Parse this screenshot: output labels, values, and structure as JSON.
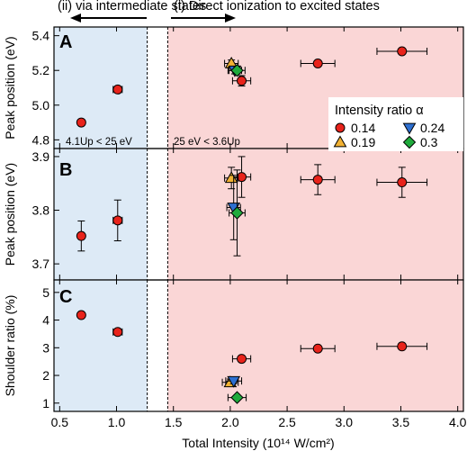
{
  "top_labels": {
    "left": "(ii) via intermediate states",
    "right": "(i) Direct ionization to excited states"
  },
  "legend": {
    "title": "Intensity ratio α",
    "entries": [
      {
        "label": "0.14",
        "marker": "circle",
        "color": "#e8231b"
      },
      {
        "label": "0.24",
        "marker": "triangle-down",
        "color": "#2d6fd0"
      },
      {
        "label": "0.19",
        "marker": "triangle-up",
        "color": "#f2b233"
      },
      {
        "label": "0.3",
        "marker": "diamond",
        "color": "#1faa3c"
      }
    ]
  },
  "colors": {
    "left_region": "#ddeaf6",
    "right_region": "#fad6d6",
    "circle": "#e8231b",
    "triangle_down": "#2d6fd0",
    "triangle_up": "#f2b233",
    "diamond": "#1faa3c"
  },
  "chart_data": [
    {
      "type": "scatter",
      "panel_label": "A",
      "ylabel": "Peak position (eV)",
      "ylim": [
        4.75,
        5.45
      ],
      "yticks": [
        "4.8",
        "5.0",
        "5.2",
        "5.4"
      ],
      "region_annotations": [
        "4.1Up < 25 eV",
        "25 eV < 3.6Up"
      ],
      "series": [
        {
          "name": "0.14",
          "marker": "circle",
          "points": [
            {
              "x": 0.69,
              "y": 4.9,
              "xerr": 0,
              "yerr": 0
            },
            {
              "x": 1.01,
              "y": 5.09,
              "xerr": 0.04,
              "yerr": 0
            },
            {
              "x": 2.1,
              "y": 5.14,
              "xerr": 0.08,
              "yerr": 0.03
            },
            {
              "x": 2.77,
              "y": 5.24,
              "xerr": 0.15,
              "yerr": 0
            },
            {
              "x": 3.51,
              "y": 5.31,
              "xerr": 0.22,
              "yerr": 0
            }
          ]
        },
        {
          "name": "0.19",
          "marker": "triangle-up",
          "points": [
            {
              "x": 2.01,
              "y": 5.24,
              "xerr": 0.06,
              "yerr": 0.02
            }
          ]
        },
        {
          "name": "0.24",
          "marker": "triangle-down",
          "points": [
            {
              "x": 2.04,
              "y": 5.2,
              "xerr": 0.06,
              "yerr": 0.02
            }
          ]
        },
        {
          "name": "0.3",
          "marker": "diamond",
          "points": [
            {
              "x": 2.06,
              "y": 5.2,
              "xerr": 0.07,
              "yerr": 0.02
            }
          ]
        }
      ]
    },
    {
      "type": "scatter",
      "panel_label": "B",
      "ylabel": "Peak position (eV)",
      "ylim": [
        3.67,
        3.915
      ],
      "yticks": [
        "3.7",
        "3.8",
        "3.9"
      ],
      "series": [
        {
          "name": "0.14",
          "marker": "circle",
          "points": [
            {
              "x": 0.69,
              "y": 3.752,
              "xerr": 0,
              "yerr": 0.028
            },
            {
              "x": 1.01,
              "y": 3.781,
              "xerr": 0.04,
              "yerr": 0.038
            },
            {
              "x": 2.1,
              "y": 3.862,
              "xerr": 0.08,
              "yerr": 0.038
            },
            {
              "x": 2.77,
              "y": 3.857,
              "xerr": 0.15,
              "yerr": 0.028
            },
            {
              "x": 3.51,
              "y": 3.852,
              "xerr": 0.22,
              "yerr": 0.028
            }
          ]
        },
        {
          "name": "0.19",
          "marker": "triangle-up",
          "points": [
            {
              "x": 2.01,
              "y": 3.86,
              "xerr": 0.06,
              "yerr": 0.02
            }
          ]
        },
        {
          "name": "0.24",
          "marker": "triangle-down",
          "points": [
            {
              "x": 2.03,
              "y": 3.805,
              "xerr": 0.06,
              "yerr": 0.06
            }
          ]
        },
        {
          "name": "0.3",
          "marker": "diamond",
          "points": [
            {
              "x": 2.06,
              "y": 3.795,
              "xerr": 0.07,
              "yerr": 0.08
            }
          ]
        }
      ]
    },
    {
      "type": "scatter",
      "panel_label": "C",
      "ylabel": "Shoulder ratio (%)",
      "ylim": [
        0.7,
        5.45
      ],
      "yticks": [
        "1",
        "2",
        "3",
        "4",
        "5"
      ],
      "xlabel": "Total Intensity (10¹⁴ W/cm²)",
      "xlim": [
        0.45,
        4.05
      ],
      "xticks": [
        "0.5",
        "1.0",
        "1.5",
        "2.0",
        "2.5",
        "3.0",
        "3.5",
        "4.0"
      ],
      "series": [
        {
          "name": "0.14",
          "marker": "circle",
          "points": [
            {
              "x": 0.69,
              "y": 4.18,
              "xerr": 0,
              "yerr": 0
            },
            {
              "x": 1.01,
              "y": 3.57,
              "xerr": 0.04,
              "yerr": 0
            },
            {
              "x": 2.1,
              "y": 2.6,
              "xerr": 0.08,
              "yerr": 0
            },
            {
              "x": 2.77,
              "y": 2.97,
              "xerr": 0.15,
              "yerr": 0
            },
            {
              "x": 3.51,
              "y": 3.05,
              "xerr": 0.22,
              "yerr": 0
            }
          ]
        },
        {
          "name": "0.19",
          "marker": "triangle-up",
          "points": [
            {
              "x": 2.0,
              "y": 1.75,
              "xerr": 0.07,
              "yerr": 0.12
            }
          ]
        },
        {
          "name": "0.24",
          "marker": "triangle-down",
          "points": [
            {
              "x": 2.03,
              "y": 1.8,
              "xerr": 0.07,
              "yerr": 0.1
            }
          ]
        },
        {
          "name": "0.3",
          "marker": "diamond",
          "points": [
            {
              "x": 2.06,
              "y": 1.2,
              "xerr": 0.08,
              "yerr": 0.08
            }
          ]
        }
      ]
    }
  ],
  "regions": {
    "left_end_x": 1.27,
    "right_start_x": 1.45
  }
}
